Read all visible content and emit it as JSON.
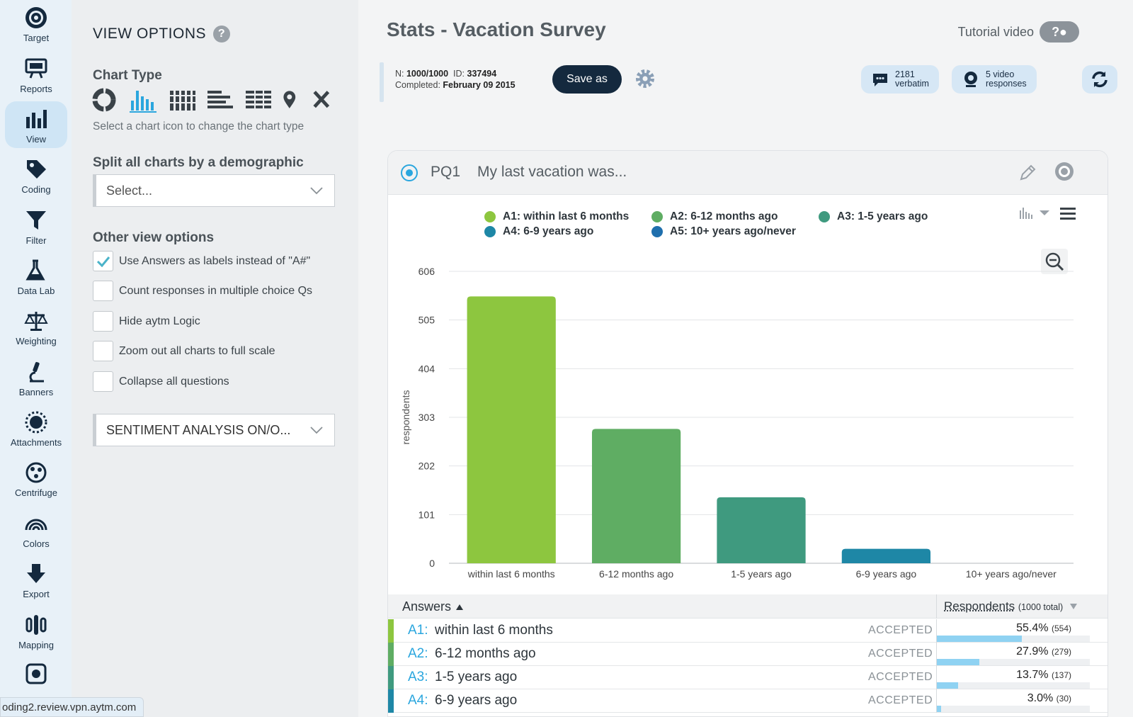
{
  "rail": {
    "items": [
      {
        "label": "Target",
        "icon": "target-icon"
      },
      {
        "label": "Reports",
        "icon": "reports-icon"
      },
      {
        "label": "View",
        "icon": "view-icon"
      },
      {
        "label": "Coding",
        "icon": "tag-icon"
      },
      {
        "label": "Filter",
        "icon": "filter-icon"
      },
      {
        "label": "Data Lab",
        "icon": "flask-icon"
      },
      {
        "label": "Weighting",
        "icon": "scale-icon"
      },
      {
        "label": "Banners",
        "icon": "microscope-icon"
      },
      {
        "label": "Attachments",
        "icon": "sun-icon"
      },
      {
        "label": "Centrifuge",
        "icon": "centrifuge-icon"
      },
      {
        "label": "Colors",
        "icon": "rainbow-icon"
      },
      {
        "label": "Export",
        "icon": "download-icon"
      },
      {
        "label": "Mapping",
        "icon": "mapping-icon"
      }
    ],
    "active": "View"
  },
  "options": {
    "title": "VIEW OPTIONS",
    "chart_type_heading": "Chart Type",
    "chart_type_hint": "Select a chart icon to change the chart type",
    "split_heading": "Split all charts by a demographic",
    "split_placeholder": "Select...",
    "other_heading": "Other view options",
    "checkboxes": [
      {
        "label": "Use Answers as labels instead of \"A#\"",
        "checked": true
      },
      {
        "label": "Count responses in multiple choice Qs",
        "checked": false
      },
      {
        "label": "Hide aytm Logic",
        "checked": false
      },
      {
        "label": "Zoom out all charts to full scale",
        "checked": false
      },
      {
        "label": "Collapse all questions",
        "checked": false
      }
    ],
    "sentiment_select": "SENTIMENT ANALYSIS ON/O..."
  },
  "header": {
    "title": "Stats - Vacation Survey",
    "tutorial": "Tutorial video"
  },
  "info": {
    "n_label": "N:",
    "n_value": "1000/1000",
    "id_label": "ID:",
    "id_value": "337494",
    "completed_label": "Completed:",
    "completed_value": "February 09 2015",
    "save_as": "Save as",
    "verbatim_count": "2181",
    "verbatim_label": "verbatim",
    "video_count": "5 video",
    "video_label": "responses"
  },
  "question": {
    "id": "PQ1",
    "text": "My last vacation was..."
  },
  "legend": [
    {
      "code": "A1: within last 6 months",
      "color": "#8dc63f"
    },
    {
      "code": "A2: 6-12 months ago",
      "color": "#5fad63"
    },
    {
      "code": "A3: 1-5 years ago",
      "color": "#3f9a7f"
    },
    {
      "code": "A4: 6-9 years ago",
      "color": "#1e87a6"
    },
    {
      "code": "A5: 10+ years ago/never",
      "color": "#1f6fad"
    }
  ],
  "chart_data": {
    "type": "bar",
    "categories": [
      "within last 6 months",
      "6-12 months ago",
      "1-5 years ago",
      "6-9 years ago",
      "10+ years ago/never"
    ],
    "values": [
      554,
      279,
      137,
      30,
      0
    ],
    "colors": [
      "#8dc63f",
      "#5fad63",
      "#3f9a7f",
      "#1e87a6",
      "#1f6fad"
    ],
    "ylabel": "respondents",
    "yticks": [
      0,
      101,
      202,
      303,
      404,
      505,
      606
    ],
    "ylim": [
      0,
      606
    ],
    "grid": true,
    "legend_position": "top"
  },
  "table": {
    "col_answers": "Answers",
    "col_respondents": "Respondents",
    "col_respondents_total": "(1000 total)",
    "rows": [
      {
        "code": "A1:",
        "text": "within last 6 months",
        "status": "ACCEPTED",
        "pct": "55.4%",
        "count": "(554)",
        "fraction": 0.554,
        "color": "#8dc63f"
      },
      {
        "code": "A2:",
        "text": "6-12 months ago",
        "status": "ACCEPTED",
        "pct": "27.9%",
        "count": "(279)",
        "fraction": 0.279,
        "color": "#5fad63"
      },
      {
        "code": "A3:",
        "text": "1-5 years ago",
        "status": "ACCEPTED",
        "pct": "13.7%",
        "count": "(137)",
        "fraction": 0.137,
        "color": "#3f9a7f"
      },
      {
        "code": "A4:",
        "text": "6-9 years ago",
        "status": "ACCEPTED",
        "pct": "3.0%",
        "count": "(30)",
        "fraction": 0.03,
        "color": "#1e87a6"
      }
    ]
  },
  "status_url": "oding2.review.vpn.aytm.com"
}
